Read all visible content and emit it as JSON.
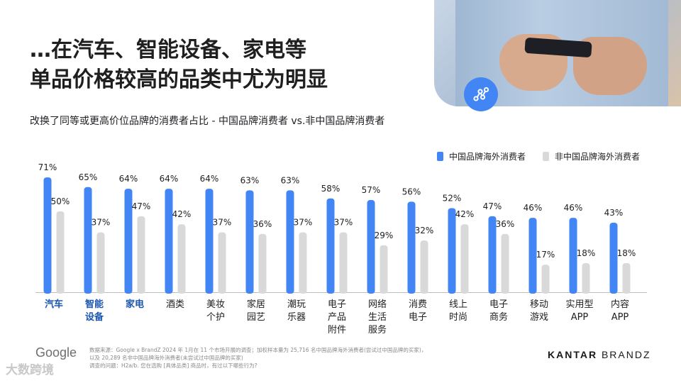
{
  "title_lines": [
    "…在汽车、智能设备、家电等",
    "单品价格较高的品类中尤为明显"
  ],
  "chart_data": {
    "type": "bar",
    "title": "改换了同等或更高价位品牌的消费者占比 - 中国品牌消费者 vs.非中国品牌消费者",
    "categories": [
      "汽车",
      "智能\n设备",
      "家电",
      "酒类",
      "美妆\n个护",
      "家居\n园艺",
      "潮玩\n乐器",
      "电子\n产品\n附件",
      "网络\n生活\n服务",
      "消费\n电子",
      "线上\n时尚",
      "电子\n商务",
      "移动\n游戏",
      "实用型\nAPP",
      "内容\nAPP"
    ],
    "highlighted_categories": [
      "汽车",
      "智能\n设备",
      "家电"
    ],
    "series": [
      {
        "name": "中国品牌海外消费者",
        "values": [
          71,
          65,
          64,
          64,
          64,
          63,
          63,
          58,
          57,
          56,
          52,
          47,
          46,
          46,
          43
        ],
        "color": "#4285f4"
      },
      {
        "name": "非中国品牌海外消费者",
        "values": [
          50,
          37,
          47,
          42,
          37,
          36,
          37,
          37,
          29,
          32,
          42,
          36,
          17,
          18,
          18
        ],
        "color": "#d9d9d9"
      }
    ],
    "value_suffix": "%",
    "ylim": [
      0,
      100
    ],
    "grid": false,
    "legend_position": "top-right",
    "highlight_color": "#1a56b0"
  },
  "footer": {
    "google_logo_text": "Google",
    "footnote_lines": [
      "数据来源：Google x BrandZ 2024 年 1月在 11 个市场开展的调查；加权样本量为 25,716 名中国品牌海外消费者(尝试过中国品牌的买家)，",
      "以及 20,289 名非中国品牌海外消费者(未尝试过中国品牌的买家)",
      "调查的问题：H2a/b. 您在选购 [具体品类] 商品时，有过以下哪些行为?"
    ],
    "kantar_bold": "KANTAR",
    "kantar_light": "BRANDZ"
  },
  "watermark": "大数跨境",
  "icons": {
    "share": "share-nodes-icon"
  }
}
